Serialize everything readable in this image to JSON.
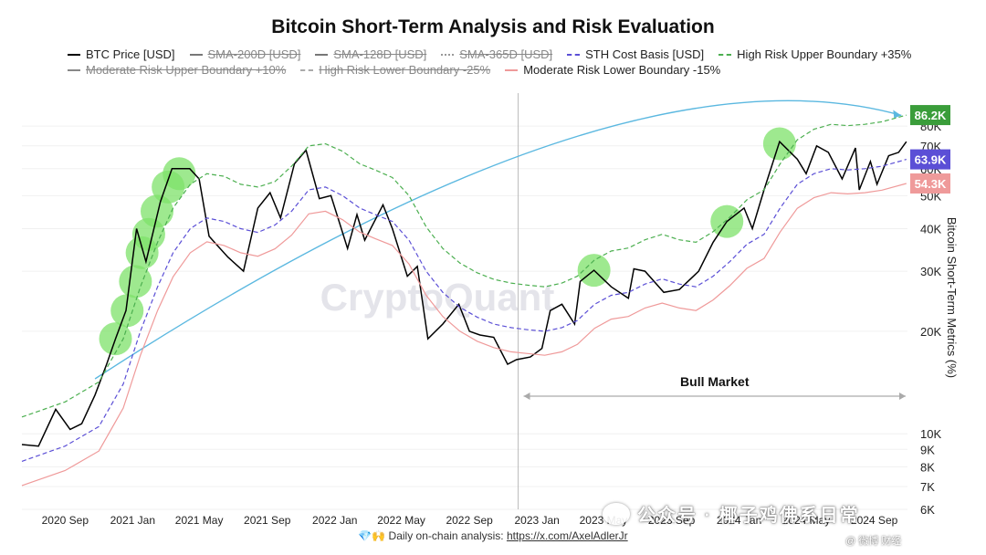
{
  "chart_title": "Bitcoin Short-Term Analysis and Risk Evaluation",
  "legend": [
    {
      "label": "BTC Price [USD]",
      "color": "#000000",
      "style": "solid",
      "active": true
    },
    {
      "label": "SMA-200D [USD]",
      "color": "#777777",
      "style": "solid",
      "active": false
    },
    {
      "label": "SMA-128D [USD]",
      "color": "#777777",
      "style": "solid",
      "active": false
    },
    {
      "label": "SMA-365D [USD]",
      "color": "#999999",
      "style": "dotted",
      "active": false
    },
    {
      "label": "STH Cost Basis [USD]",
      "color": "#5b4fd6",
      "style": "dashed",
      "active": true
    },
    {
      "label": "High Risk Upper Boundary +35%",
      "color": "#4caf50",
      "style": "dashed",
      "active": true
    },
    {
      "label": "Moderate Risk Upper Boundary +10%",
      "color": "#888888",
      "style": "solid",
      "active": false
    },
    {
      "label": "High Risk Lower Boundary -25%",
      "color": "#aaaaaa",
      "style": "dashed",
      "active": false
    },
    {
      "label": "Moderate Risk Lower Boundary -15%",
      "color": "#ef9a9a",
      "style": "solid",
      "active": true
    }
  ],
  "annotation": "Bull Market",
  "watermark": "CryptoQuant",
  "footer": {
    "prefix": "💎🙌 Daily on-chain analysis: ",
    "link": "https://x.com/AxelAdlerJr"
  },
  "overlay": {
    "wechat": "公众号 · 椰子鸡佛系日常",
    "weibo": "@ 微博 财经"
  },
  "chart_data": {
    "type": "line",
    "yscale": "log",
    "ylim": [
      6000,
      100000
    ],
    "xlim": [
      "2020-06-15",
      "2024-10-31"
    ],
    "y_ticks": [
      6000,
      7000,
      8000,
      9000,
      10000,
      20000,
      30000,
      40000,
      50000,
      60000,
      70000,
      80000
    ],
    "y_tick_labels": [
      "6K",
      "7K",
      "8K",
      "9K",
      "10K",
      "20K",
      "30K",
      "40K",
      "50K",
      "60K",
      "70K",
      "80K"
    ],
    "x_ticks": [
      "2020-09-01",
      "2021-01-01",
      "2021-05-01",
      "2021-09-01",
      "2022-01-01",
      "2022-05-01",
      "2022-09-01",
      "2023-01-01",
      "2023-05-01",
      "2023-09-01",
      "2024-01-01",
      "2024-05-01",
      "2024-09-01"
    ],
    "x_tick_labels": [
      "2020 Sep",
      "2021 Jan",
      "2021 May",
      "2021 Sep",
      "2022 Jan",
      "2022 May",
      "2022 Sep",
      "2023 Jan",
      "2023 May",
      "2023 Sep",
      "2024 Jan",
      "2024 May",
      "2024 Sep"
    ],
    "ylabel": "Bitcoin Short-Term Metrics (%)",
    "value_labels": [
      {
        "text": "86.2K",
        "value": 86200,
        "color": "#3a9d3a"
      },
      {
        "text": "63.9K",
        "value": 63900,
        "color": "#5b4fd6"
      },
      {
        "text": "54.3K",
        "value": 54300,
        "color": "#ef9a9a"
      }
    ],
    "series": [
      {
        "name": "BTC Price [USD]",
        "color": "#000000",
        "style": "solid",
        "x": [
          "2020-06-15",
          "2020-07-15",
          "2020-08-15",
          "2020-09-10",
          "2020-10-01",
          "2020-10-25",
          "2020-11-15",
          "2020-12-01",
          "2020-12-20",
          "2021-01-08",
          "2021-01-25",
          "2021-02-20",
          "2021-03-13",
          "2021-04-14",
          "2021-05-01",
          "2021-05-19",
          "2021-06-01",
          "2021-06-22",
          "2021-07-20",
          "2021-08-15",
          "2021-09-06",
          "2021-09-25",
          "2021-10-20",
          "2021-11-10",
          "2021-12-04",
          "2021-12-25",
          "2022-01-24",
          "2022-02-10",
          "2022-02-24",
          "2022-03-29",
          "2022-04-15",
          "2022-05-12",
          "2022-05-30",
          "2022-06-18",
          "2022-07-15",
          "2022-08-13",
          "2022-09-01",
          "2022-09-20",
          "2022-10-15",
          "2022-11-09",
          "2022-11-25",
          "2022-12-20",
          "2023-01-10",
          "2023-01-25",
          "2023-02-15",
          "2023-03-10",
          "2023-03-20",
          "2023-04-14",
          "2023-05-15",
          "2023-06-15",
          "2023-06-25",
          "2023-07-15",
          "2023-08-18",
          "2023-09-15",
          "2023-10-20",
          "2023-11-15",
          "2023-12-10",
          "2024-01-10",
          "2024-01-25",
          "2024-02-15",
          "2024-03-14",
          "2024-04-15",
          "2024-05-01",
          "2024-05-20",
          "2024-06-10",
          "2024-07-05",
          "2024-07-29",
          "2024-08-05",
          "2024-08-25",
          "2024-09-06",
          "2024-09-27",
          "2024-10-15",
          "2024-10-29"
        ],
        "values": [
          9300,
          9200,
          11800,
          10300,
          10700,
          13000,
          16000,
          19000,
          23000,
          40000,
          32000,
          48000,
          60000,
          60000,
          56000,
          38000,
          36000,
          33000,
          30000,
          46000,
          51000,
          43000,
          62000,
          68000,
          49000,
          50000,
          35000,
          44000,
          37000,
          47000,
          40000,
          29000,
          31000,
          19000,
          21000,
          24000,
          20000,
          19500,
          19200,
          16000,
          16500,
          16800,
          17800,
          23000,
          24000,
          21000,
          28000,
          30200,
          27000,
          25000,
          30500,
          30000,
          26000,
          26500,
          30000,
          36500,
          42000,
          46000,
          40000,
          52000,
          72000,
          64000,
          58000,
          70000,
          67000,
          56000,
          69000,
          52000,
          63000,
          54000,
          65500,
          67000,
          72000
        ]
      },
      {
        "name": "STH Cost Basis [USD]",
        "color": "#5b4fd6",
        "style": "dashed",
        "x": [
          "2020-06-15",
          "2020-09-01",
          "2020-11-01",
          "2020-12-15",
          "2021-01-15",
          "2021-02-15",
          "2021-03-15",
          "2021-04-15",
          "2021-05-15",
          "2021-06-15",
          "2021-07-15",
          "2021-08-15",
          "2021-09-15",
          "2021-10-15",
          "2021-11-15",
          "2021-12-15",
          "2022-01-15",
          "2022-02-15",
          "2022-03-15",
          "2022-04-15",
          "2022-05-15",
          "2022-06-15",
          "2022-07-15",
          "2022-08-15",
          "2022-09-15",
          "2022-10-15",
          "2022-11-15",
          "2022-12-15",
          "2023-01-15",
          "2023-02-15",
          "2023-03-15",
          "2023-04-15",
          "2023-05-15",
          "2023-06-15",
          "2023-07-15",
          "2023-08-15",
          "2023-09-15",
          "2023-10-15",
          "2023-11-15",
          "2023-12-15",
          "2024-01-15",
          "2024-02-15",
          "2024-03-15",
          "2024-04-15",
          "2024-05-15",
          "2024-06-15",
          "2024-07-15",
          "2024-08-15",
          "2024-09-15",
          "2024-10-29"
        ],
        "values": [
          8300,
          9200,
          10500,
          14000,
          20000,
          27000,
          34000,
          40000,
          43000,
          42000,
          40000,
          39000,
          41000,
          45000,
          52000,
          53000,
          50000,
          46000,
          44000,
          42000,
          37000,
          30000,
          26000,
          23500,
          22000,
          21000,
          20500,
          20200,
          20000,
          20500,
          21500,
          24000,
          25500,
          26000,
          27500,
          28500,
          27500,
          27000,
          29000,
          32000,
          36000,
          38500,
          46000,
          54000,
          58000,
          60000,
          59500,
          60000,
          61000,
          63900
        ]
      },
      {
        "name": "High Risk Upper Boundary +35%",
        "color": "#4caf50",
        "style": "dashed",
        "x": [
          "2020-06-15",
          "2020-09-01",
          "2020-11-01",
          "2020-12-15",
          "2021-01-15",
          "2021-02-15",
          "2021-03-15",
          "2021-04-15",
          "2021-05-15",
          "2021-06-15",
          "2021-07-15",
          "2021-08-15",
          "2021-09-15",
          "2021-10-15",
          "2021-11-15",
          "2021-12-15",
          "2022-01-15",
          "2022-02-15",
          "2022-03-15",
          "2022-04-15",
          "2022-05-15",
          "2022-06-15",
          "2022-07-15",
          "2022-08-15",
          "2022-09-15",
          "2022-10-15",
          "2022-11-15",
          "2022-12-15",
          "2023-01-15",
          "2023-02-15",
          "2023-03-15",
          "2023-04-15",
          "2023-05-15",
          "2023-06-15",
          "2023-07-15",
          "2023-08-15",
          "2023-09-15",
          "2023-10-15",
          "2023-11-15",
          "2023-12-15",
          "2024-01-15",
          "2024-02-15",
          "2024-03-15",
          "2024-04-15",
          "2024-05-15",
          "2024-06-15",
          "2024-07-15",
          "2024-08-15",
          "2024-09-15",
          "2024-10-29"
        ],
        "values": [
          11200,
          12400,
          14200,
          19000,
          27000,
          36500,
          46000,
          54000,
          58000,
          57000,
          54000,
          53000,
          55000,
          61000,
          70000,
          71000,
          67500,
          62000,
          59500,
          56500,
          50000,
          40500,
          35000,
          31700,
          29700,
          28400,
          27700,
          27300,
          27000,
          27700,
          29000,
          32400,
          34400,
          35100,
          37100,
          38500,
          37100,
          36500,
          39200,
          43200,
          48600,
          52000,
          62000,
          72900,
          78300,
          81000,
          80300,
          81000,
          82400,
          86200
        ]
      },
      {
        "name": "Moderate Risk Lower Boundary -15%",
        "color": "#ef9a9a",
        "style": "solid",
        "x": [
          "2020-06-15",
          "2020-09-01",
          "2020-11-01",
          "2020-12-15",
          "2021-01-15",
          "2021-02-15",
          "2021-03-15",
          "2021-04-15",
          "2021-05-15",
          "2021-06-15",
          "2021-07-15",
          "2021-08-15",
          "2021-09-15",
          "2021-10-15",
          "2021-11-15",
          "2021-12-15",
          "2022-01-15",
          "2022-02-15",
          "2022-03-15",
          "2022-04-15",
          "2022-05-15",
          "2022-06-15",
          "2022-07-15",
          "2022-08-15",
          "2022-09-15",
          "2022-10-15",
          "2022-11-15",
          "2022-12-15",
          "2023-01-15",
          "2023-02-15",
          "2023-03-15",
          "2023-04-15",
          "2023-05-15",
          "2023-06-15",
          "2023-07-15",
          "2023-08-15",
          "2023-09-15",
          "2023-10-15",
          "2023-11-15",
          "2023-12-15",
          "2024-01-15",
          "2024-02-15",
          "2024-03-15",
          "2024-04-15",
          "2024-05-15",
          "2024-06-15",
          "2024-07-15",
          "2024-08-15",
          "2024-09-15",
          "2024-10-29"
        ],
        "values": [
          7050,
          7800,
          8900,
          11900,
          17000,
          23000,
          28900,
          34000,
          36600,
          35700,
          34000,
          33200,
          34900,
          38300,
          44200,
          45000,
          42500,
          39100,
          37400,
          35700,
          31500,
          25500,
          22100,
          20000,
          18700,
          17900,
          17400,
          17200,
          17000,
          17400,
          18300,
          20400,
          21700,
          22100,
          23400,
          24200,
          23400,
          23000,
          24700,
          27200,
          30600,
          32700,
          39100,
          45900,
          49300,
          51000,
          50600,
          51000,
          51900,
          54300
        ]
      }
    ],
    "highlight_points": [
      {
        "x": "2020-12-01",
        "y": 19000
      },
      {
        "x": "2020-12-22",
        "y": 23000
      },
      {
        "x": "2021-01-06",
        "y": 28000
      },
      {
        "x": "2021-01-18",
        "y": 34000
      },
      {
        "x": "2021-01-30",
        "y": 38500
      },
      {
        "x": "2021-02-14",
        "y": 45000
      },
      {
        "x": "2021-03-06",
        "y": 53000
      },
      {
        "x": "2021-03-26",
        "y": 58000
      },
      {
        "x": "2023-04-14",
        "y": 30200
      },
      {
        "x": "2023-12-10",
        "y": 42000
      },
      {
        "x": "2024-03-14",
        "y": 71000
      }
    ],
    "vertical_marker": "2022-11-28",
    "bull_market_range": [
      "2022-11-28",
      "2024-10-31"
    ]
  }
}
